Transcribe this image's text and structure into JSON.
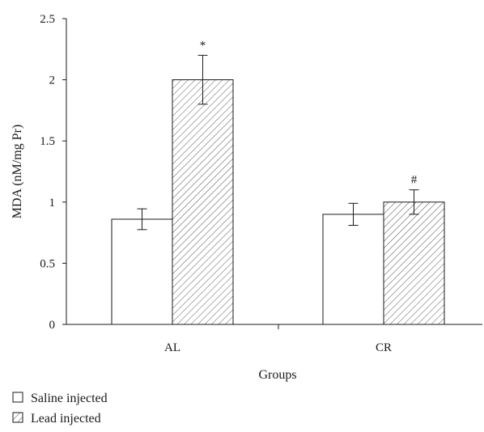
{
  "chart_data": {
    "type": "bar",
    "categories": [
      "AL",
      "CR"
    ],
    "series": [
      {
        "name": "Saline injected",
        "values": [
          0.86,
          0.9
        ],
        "errors": [
          0.085,
          0.09
        ],
        "pattern": "none",
        "annotations": [
          "",
          ""
        ]
      },
      {
        "name": "Lead injected",
        "values": [
          2.0,
          1.0
        ],
        "errors": [
          0.2,
          0.1
        ],
        "pattern": "hatch",
        "annotations": [
          "*",
          "#"
        ]
      }
    ],
    "title": "",
    "xlabel": "Groups",
    "ylabel": "MDA (nM/mg Pr)",
    "ylim": [
      0,
      2.5
    ],
    "yticks": [
      0,
      0.5,
      1,
      1.5,
      2,
      2.5
    ],
    "ytick_labels": [
      "0",
      "0.5",
      "1",
      "1.5",
      "2",
      "2.5"
    ],
    "grid": false,
    "legend_position": "bottom-left"
  }
}
